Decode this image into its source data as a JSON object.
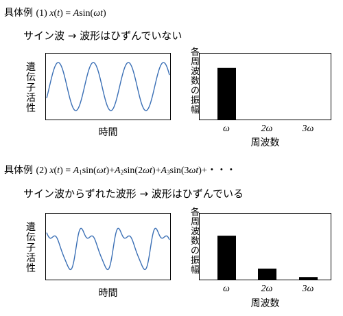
{
  "example1": {
    "heading_label": "具体例",
    "heading_formula": "(1) x(t) = Asin(ωt)",
    "note": "サイン波 → 波形はひずんでいない",
    "time_plot": {
      "ylabel": "遺伝子活性",
      "xlabel": "時間",
      "wave_color": "#3a6fb5"
    },
    "spectrum": {
      "ylabel": "各周波数の振幅",
      "xlabel": "周波数"
    }
  },
  "example2": {
    "heading_label": "具体例",
    "heading_formula": "(2) x(t) = A1sin(ωt)+A2sin(2ωt)+A3sin(3ωt)+・・・",
    "note": "サイン波からずれた波形 → 波形はひずんでいる",
    "time_plot": {
      "ylabel": "遺伝子活性",
      "xlabel": "時間",
      "wave_color": "#3a6fb5"
    },
    "spectrum": {
      "ylabel": "各周波数の振幅",
      "xlabel": "周波数"
    }
  },
  "chart_data": [
    {
      "type": "bar",
      "categories": [
        "ω",
        "2ω",
        "3ω"
      ],
      "values": [
        0.8,
        0,
        0
      ],
      "xlabel": "周波数",
      "ylabel": "各周波数の振幅",
      "ylim": [
        0,
        1
      ],
      "bar_color": "#000000"
    },
    {
      "type": "bar",
      "categories": [
        "ω",
        "2ω",
        "3ω"
      ],
      "values": [
        0.68,
        0.17,
        0.04
      ],
      "xlabel": "周波数",
      "ylabel": "各周波数の振幅",
      "ylim": [
        0,
        1
      ],
      "bar_color": "#000000"
    }
  ]
}
